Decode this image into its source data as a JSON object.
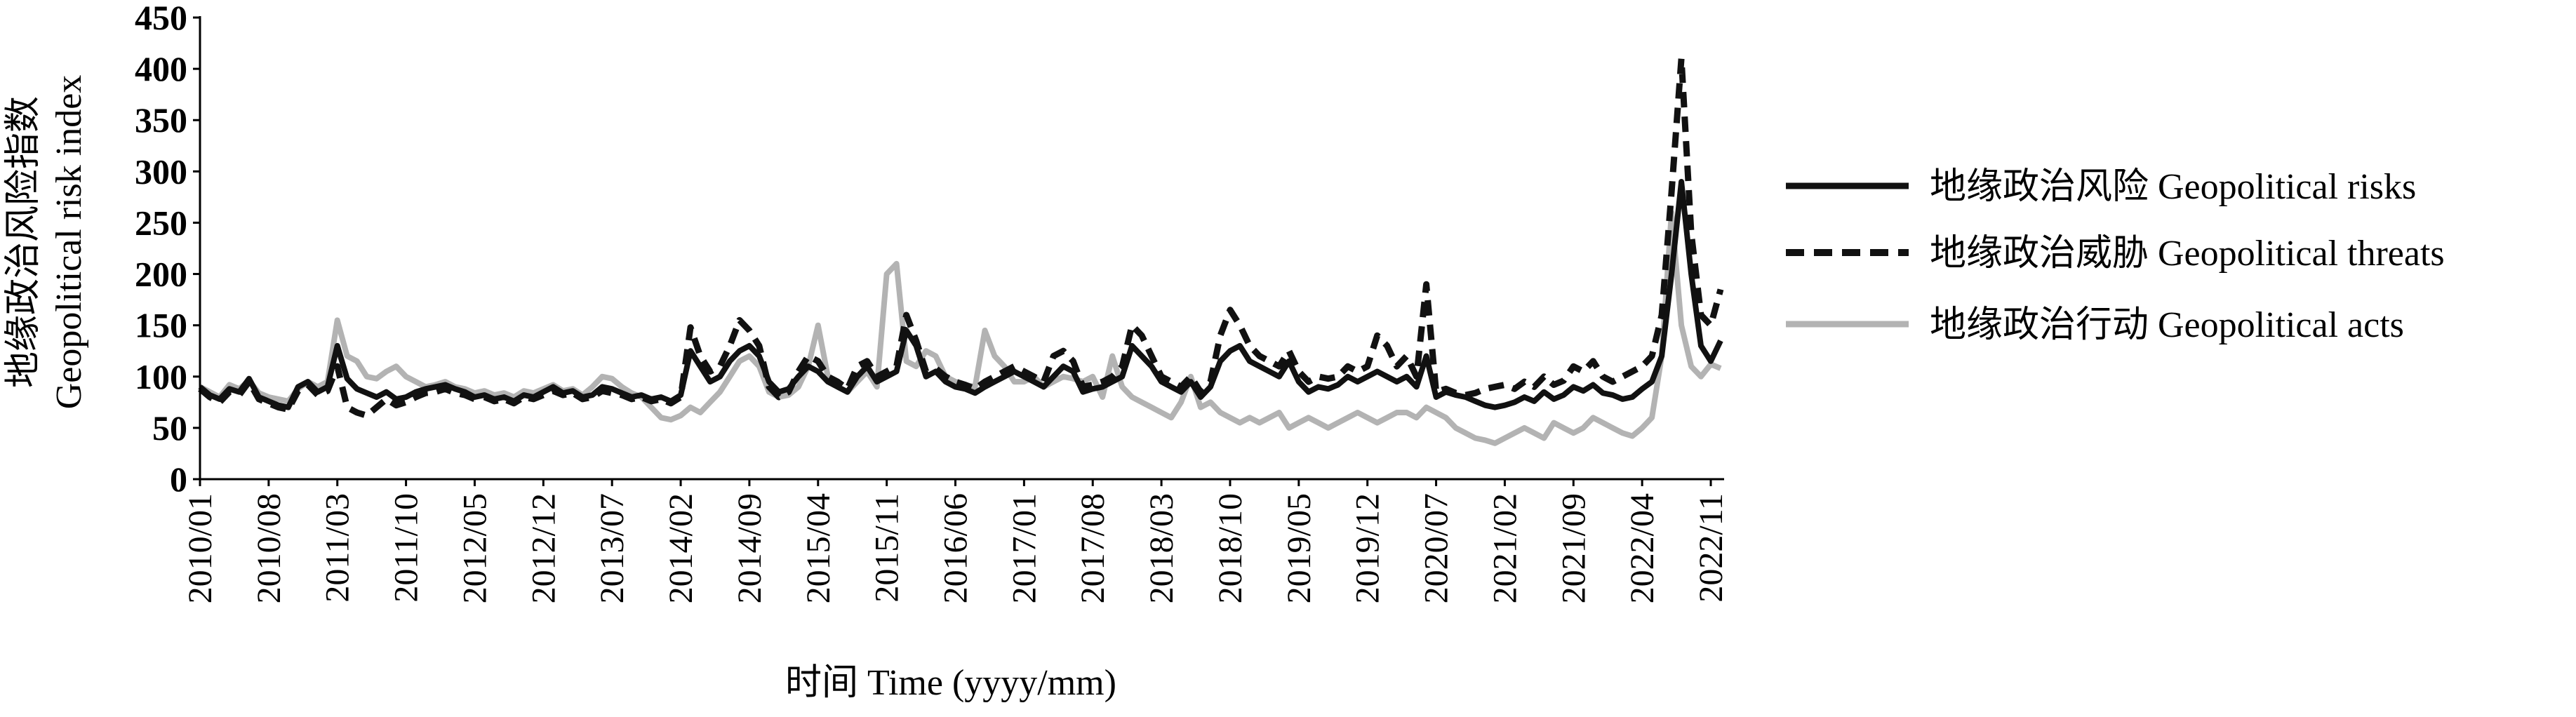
{
  "chart_data": {
    "type": "line",
    "title": "",
    "ylabel_cn": "地缘政治风险指数",
    "ylabel_en": "Geopolitical risk index",
    "xlabel": "时间 Time (yyyy/mm)",
    "ylim": [
      0,
      450
    ],
    "yticks": [
      0,
      50,
      100,
      150,
      200,
      250,
      300,
      350,
      400,
      450
    ],
    "x_start": "2010/01",
    "x_end": "2022/12",
    "xticks": [
      "2010/01",
      "2010/08",
      "2011/03",
      "2011/10",
      "2012/05",
      "2012/12",
      "2013/07",
      "2014/02",
      "2014/09",
      "2015/04",
      "2015/11",
      "2016/06",
      "2017/01",
      "2017/08",
      "2018/03",
      "2018/10",
      "2019/05",
      "2019/12",
      "2020/07",
      "2021/02",
      "2021/09",
      "2022/04",
      "2022/11"
    ],
    "grid": false,
    "legend_position": "right",
    "series": [
      {
        "name": "地缘政治风险 Geopolitical risks",
        "color": "#111111",
        "style": "solid",
        "values": [
          90,
          82,
          78,
          88,
          85,
          98,
          80,
          76,
          72,
          70,
          90,
          95,
          85,
          90,
          130,
          98,
          88,
          84,
          80,
          85,
          78,
          80,
          85,
          88,
          90,
          92,
          88,
          85,
          80,
          82,
          78,
          80,
          76,
          82,
          80,
          85,
          90,
          84,
          86,
          80,
          82,
          90,
          88,
          84,
          80,
          82,
          78,
          80,
          76,
          82,
          125,
          110,
          95,
          100,
          115,
          125,
          130,
          120,
          95,
          85,
          88,
          100,
          110,
          105,
          95,
          90,
          85,
          100,
          110,
          95,
          100,
          105,
          145,
          130,
          100,
          105,
          95,
          90,
          88,
          84,
          90,
          95,
          100,
          105,
          100,
          95,
          90,
          100,
          110,
          105,
          85,
          88,
          90,
          95,
          100,
          130,
          120,
          110,
          95,
          90,
          85,
          95,
          80,
          90,
          115,
          125,
          130,
          115,
          110,
          105,
          100,
          115,
          95,
          85,
          90,
          88,
          92,
          100,
          95,
          100,
          105,
          100,
          95,
          100,
          90,
          120,
          80,
          85,
          82,
          80,
          76,
          72,
          70,
          72,
          75,
          80,
          76,
          85,
          78,
          82,
          90,
          86,
          92,
          84,
          82,
          78,
          80,
          88,
          95,
          120,
          200,
          290,
          200,
          130,
          115,
          135
        ]
      },
      {
        "name": "地缘政治威胁 Geopolitical threats",
        "color": "#111111",
        "style": "dashed",
        "values": [
          88,
          80,
          75,
          85,
          82,
          95,
          78,
          74,
          70,
          68,
          86,
          92,
          82,
          86,
          110,
          70,
          65,
          62,
          70,
          78,
          72,
          75,
          80,
          84,
          85,
          88,
          84,
          82,
          78,
          80,
          76,
          78,
          74,
          80,
          78,
          82,
          86,
          82,
          84,
          78,
          80,
          86,
          84,
          82,
          78,
          80,
          76,
          78,
          74,
          80,
          148,
          120,
          105,
          110,
          130,
          155,
          145,
          130,
          90,
          80,
          85,
          105,
          120,
          115,
          100,
          95,
          88,
          110,
          115,
          100,
          105,
          110,
          160,
          135,
          105,
          108,
          100,
          95,
          92,
          88,
          95,
          100,
          105,
          110,
          105,
          100,
          95,
          120,
          125,
          115,
          90,
          92,
          95,
          100,
          110,
          150,
          140,
          120,
          100,
          95,
          90,
          100,
          85,
          95,
          140,
          165,
          150,
          130,
          120,
          115,
          110,
          125,
          105,
          95,
          100,
          98,
          100,
          110,
          105,
          110,
          140,
          130,
          110,
          120,
          100,
          190,
          85,
          88,
          84,
          82,
          84,
          88,
          90,
          92,
          88,
          95,
          90,
          100,
          92,
          96,
          110,
          105,
          115,
          100,
          95,
          100,
          105,
          110,
          120,
          160,
          280,
          410,
          240,
          160,
          150,
          185
        ]
      },
      {
        "name": "地缘政治行动 Geopolitical acts",
        "color": "#b3b3b3",
        "style": "solid",
        "values": [
          90,
          85,
          80,
          92,
          88,
          96,
          84,
          80,
          78,
          76,
          88,
          95,
          90,
          95,
          155,
          120,
          115,
          100,
          98,
          105,
          110,
          100,
          95,
          90,
          92,
          95,
          90,
          88,
          84,
          86,
          82,
          84,
          80,
          86,
          84,
          88,
          92,
          86,
          88,
          82,
          90,
          100,
          98,
          90,
          84,
          80,
          70,
          60,
          58,
          62,
          70,
          65,
          75,
          85,
          100,
          115,
          120,
          110,
          85,
          80,
          82,
          90,
          110,
          150,
          100,
          90,
          85,
          95,
          105,
          90,
          200,
          210,
          115,
          110,
          125,
          120,
          100,
          95,
          92,
          90,
          145,
          120,
          110,
          95,
          95,
          100,
          90,
          95,
          100,
          98,
          95,
          100,
          80,
          120,
          90,
          80,
          75,
          70,
          65,
          60,
          75,
          100,
          70,
          75,
          65,
          60,
          55,
          60,
          55,
          60,
          65,
          50,
          55,
          60,
          55,
          50,
          55,
          60,
          65,
          60,
          55,
          60,
          65,
          65,
          60,
          70,
          65,
          60,
          50,
          45,
          40,
          38,
          35,
          40,
          45,
          50,
          45,
          40,
          55,
          50,
          45,
          50,
          60,
          55,
          50,
          45,
          42,
          50,
          60,
          120,
          260,
          150,
          110,
          100,
          112,
          108
        ]
      }
    ]
  }
}
